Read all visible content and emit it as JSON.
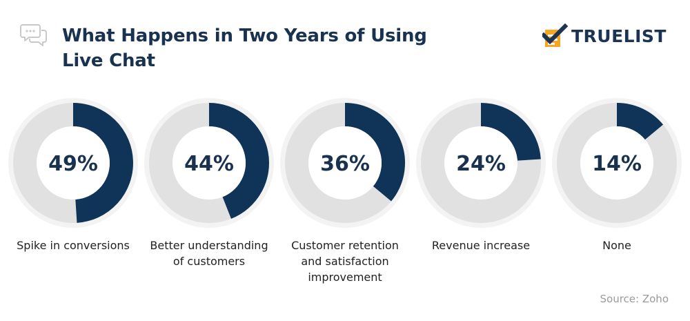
{
  "header": {
    "title": "What Happens in Two Years of Using Live Chat",
    "chat_icon": "chat-bubbles-icon",
    "brand": {
      "name": "TRUELIST",
      "logo_icon": "checkmark-list-icon",
      "accent_color": "#f5a623",
      "text_color": "#1b3454"
    }
  },
  "chart_data": {
    "type": "donut",
    "title": "What Happens in Two Years of Using Live Chat",
    "value_unit": "%",
    "range": [
      0,
      100
    ],
    "colors": {
      "filled": "#0f3458",
      "remaining": "#e1e1e1",
      "outer_ring": "#f3f3f3"
    },
    "items": [
      {
        "label": "Spike in conversions",
        "value": 49,
        "display": "49%"
      },
      {
        "label": "Better understanding of customers",
        "value": 44,
        "display": "44%"
      },
      {
        "label": "Customer retention and satisfaction improvement",
        "value": 36,
        "display": "36%"
      },
      {
        "label": "Revenue increase",
        "value": 24,
        "display": "24%"
      },
      {
        "label": "None",
        "value": 14,
        "display": "14%"
      }
    ]
  },
  "footer": {
    "source": "Source: Zoho"
  }
}
